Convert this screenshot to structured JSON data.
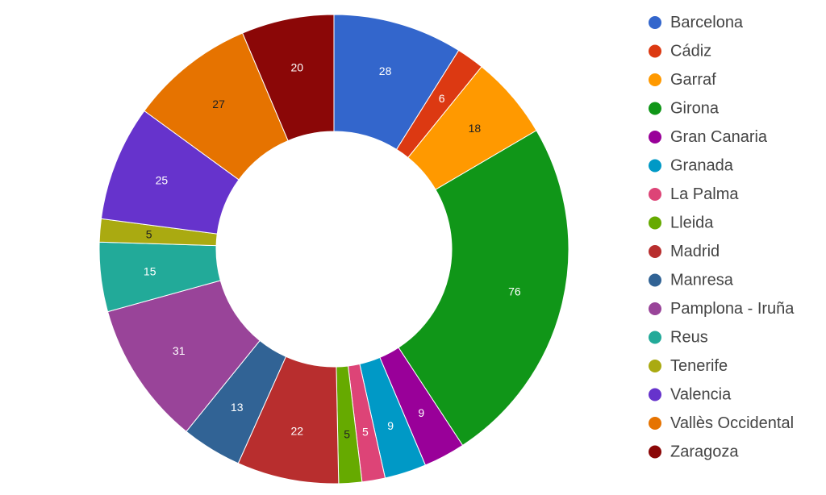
{
  "chart_data": {
    "type": "pie",
    "donut": true,
    "title": "",
    "legend_position": "right",
    "categories": [
      "Barcelona",
      "Cádiz",
      "Garraf",
      "Girona",
      "Gran Canaria",
      "Granada",
      "La Palma",
      "Lleida",
      "Madrid",
      "Manresa",
      "Pamplona - Iruña",
      "Reus",
      "Tenerife",
      "Valencia",
      "Vallès Occidental",
      "Zaragoza"
    ],
    "values": [
      28,
      6,
      18,
      76,
      9,
      9,
      5,
      5,
      22,
      13,
      31,
      15,
      5,
      25,
      27,
      20
    ],
    "colors": [
      "#3366cc",
      "#dc3912",
      "#ff9900",
      "#109618",
      "#990099",
      "#0099c6",
      "#dd4477",
      "#66aa00",
      "#b82e2e",
      "#316395",
      "#994499",
      "#22aa99",
      "#aaaa11",
      "#6633cc",
      "#e67300",
      "#8b0707"
    ],
    "label_colors": [
      "#ffffff",
      "#ffffff",
      "#222222",
      "#ffffff",
      "#ffffff",
      "#ffffff",
      "#ffffff",
      "#222222",
      "#ffffff",
      "#ffffff",
      "#ffffff",
      "#ffffff",
      "#222222",
      "#ffffff",
      "#222222",
      "#ffffff"
    ]
  }
}
